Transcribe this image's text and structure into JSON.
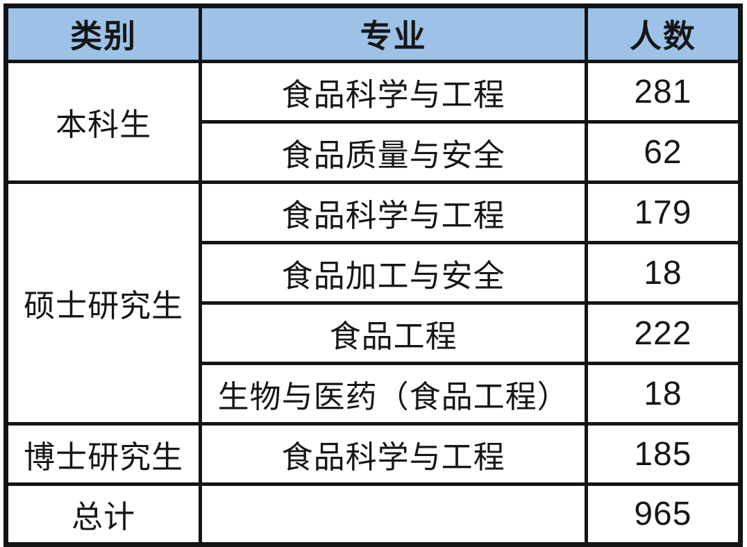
{
  "table": {
    "headers": {
      "category": "类别",
      "major": "专业",
      "count": "人数"
    },
    "groups": [
      {
        "category": "本科生",
        "rows": [
          {
            "major": "食品科学与工程",
            "count": "281"
          },
          {
            "major": "食品质量与安全",
            "count": "62"
          }
        ]
      },
      {
        "category": "硕士研究生",
        "rows": [
          {
            "major": "食品科学与工程",
            "count": "179"
          },
          {
            "major": "食品加工与安全",
            "count": "18"
          },
          {
            "major": "食品工程",
            "count": "222"
          },
          {
            "major": "生物与医药（食品工程）",
            "count": "18"
          }
        ]
      },
      {
        "category": "博士研究生",
        "rows": [
          {
            "major": "食品科学与工程",
            "count": "185"
          }
        ]
      },
      {
        "category": "总计",
        "rows": [
          {
            "major": "",
            "count": "965"
          }
        ]
      }
    ],
    "colors": {
      "header_bg": "#9ec2e7",
      "border": "#141414",
      "text": "#161616"
    }
  },
  "chart_data": {
    "type": "table",
    "columns": [
      "类别",
      "专业",
      "人数"
    ],
    "rows": [
      [
        "本科生",
        "食品科学与工程",
        281
      ],
      [
        "本科生",
        "食品质量与安全",
        62
      ],
      [
        "硕士研究生",
        "食品科学与工程",
        179
      ],
      [
        "硕士研究生",
        "食品加工与安全",
        18
      ],
      [
        "硕士研究生",
        "食品工程",
        222
      ],
      [
        "硕士研究生",
        "生物与医药（食品工程）",
        18
      ],
      [
        "博士研究生",
        "食品科学与工程",
        185
      ],
      [
        "总计",
        "",
        965
      ]
    ],
    "total": 965,
    "layout_hints": {
      "merged_category_cells": true,
      "header_background": "#9ec2e7",
      "grid": true
    }
  }
}
